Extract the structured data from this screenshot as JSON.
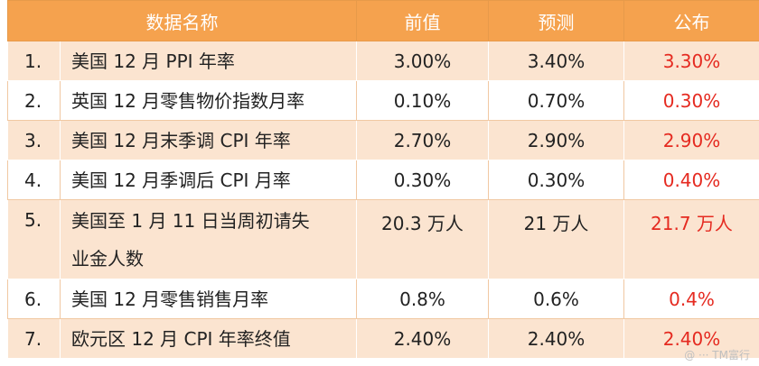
{
  "header": {
    "name": "数据名称",
    "previous": "前值",
    "forecast": "预测",
    "actual": "公布"
  },
  "rows": [
    {
      "idx": "1.",
      "name": "美国 12 月 PPI 年率",
      "previous": "3.00%",
      "forecast": "3.40%",
      "actual": "3.30%"
    },
    {
      "idx": "2.",
      "name": "英国 12 月零售物价指数月率",
      "previous": "0.10%",
      "forecast": "0.70%",
      "actual": "0.30%"
    },
    {
      "idx": "3.",
      "name": "美国 12 月末季调 CPI 年率",
      "previous": "2.70%",
      "forecast": "2.90%",
      "actual": "2.90%"
    },
    {
      "idx": "4.",
      "name": "美国 12 月季调后 CPI 月率",
      "previous": "0.30%",
      "forecast": "0.30%",
      "actual": "0.40%"
    },
    {
      "idx": "5.",
      "name_line1": "美国至 1 月 11 日当周初请失",
      "name_line2": "业金人数",
      "previous": "20.3 万人",
      "forecast": "21 万人",
      "actual": "21.7 万人"
    },
    {
      "idx": "6.",
      "name": "美国 12 月零售销售月率",
      "previous": "0.8%",
      "forecast": "0.6%",
      "actual": "0.4%"
    },
    {
      "idx": "7.",
      "name": "欧元区 12 月 CPI 年率终值",
      "previous": "2.40%",
      "forecast": "2.40%",
      "actual": "2.40%"
    }
  ],
  "colors": {
    "header_bg": "#f5a24e",
    "stripe_bg": "#fbe4d0",
    "actual_text": "#e52a20"
  },
  "watermark": "@ ··· TM富行"
}
